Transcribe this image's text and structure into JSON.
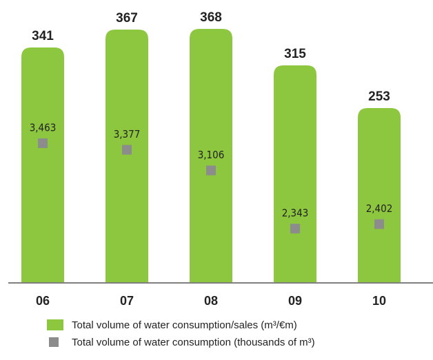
{
  "chart_data": {
    "type": "bar",
    "categories": [
      "06",
      "07",
      "08",
      "09",
      "10"
    ],
    "series": [
      {
        "name": "Total volume of water consumption/sales (m³/€m)",
        "color": "#8dc63f",
        "values": [
          341,
          367,
          368,
          315,
          253
        ]
      },
      {
        "name": "Total volume of water consumption (thousands of m³)",
        "color": "#8c8c8c",
        "axis": "y2",
        "values": [
          3463,
          3377,
          3106,
          2343,
          2402
        ],
        "value_labels": [
          "3,463",
          "3,377",
          "3,106",
          "2,343",
          "2,402"
        ]
      }
    ],
    "ylim": [
      0,
      370
    ],
    "y2lim": [
      1640,
      4980
    ]
  }
}
